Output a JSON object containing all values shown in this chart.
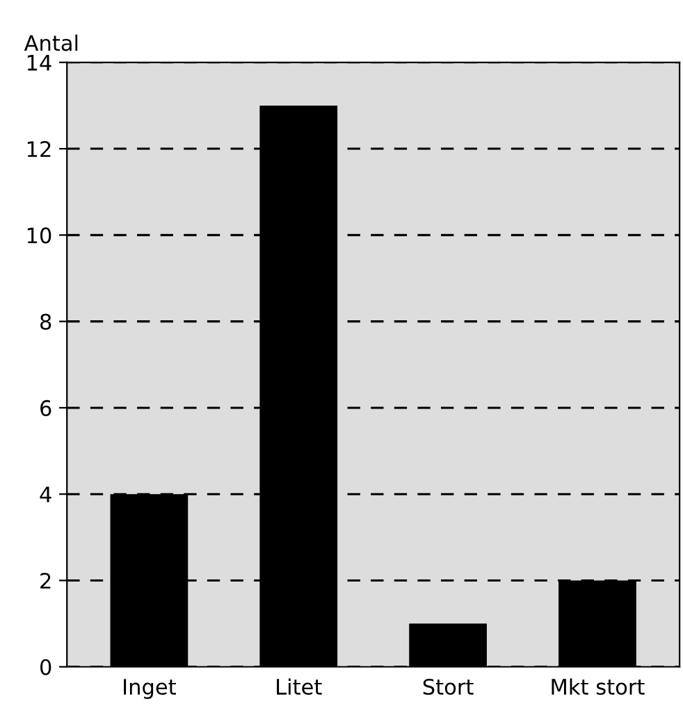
{
  "chart_data": {
    "type": "bar",
    "ylabel": "Antal",
    "categories": [
      "Inget",
      "Litet",
      "Stort",
      "Mkt stort"
    ],
    "values": [
      4,
      13,
      1,
      2
    ],
    "color": "#000000",
    "ylim": [
      0,
      14
    ],
    "yticks": [
      0,
      2,
      4,
      6,
      8,
      10,
      12,
      14
    ],
    "grid": "y",
    "line_style": "dashed"
  }
}
